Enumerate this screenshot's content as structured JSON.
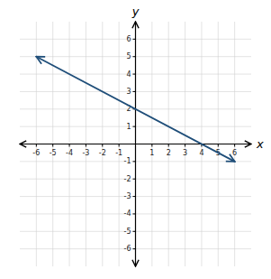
{
  "chart_data": {
    "type": "line",
    "x": [
      -6,
      6
    ],
    "series": [
      {
        "values": [
          5,
          -1
        ],
        "color": "#1f4e79",
        "marker": "arrow"
      }
    ],
    "xlabel": "x",
    "ylabel": "y",
    "xlim": [
      -7,
      7
    ],
    "ylim": [
      -7,
      7
    ],
    "xticks": [
      -6,
      -5,
      -4,
      -3,
      -2,
      -1,
      1,
      2,
      3,
      4,
      5,
      6
    ],
    "yticks": [
      -6,
      -5,
      -4,
      -3,
      -2,
      -1,
      1,
      2,
      3,
      4,
      5,
      6
    ],
    "grid": true
  }
}
